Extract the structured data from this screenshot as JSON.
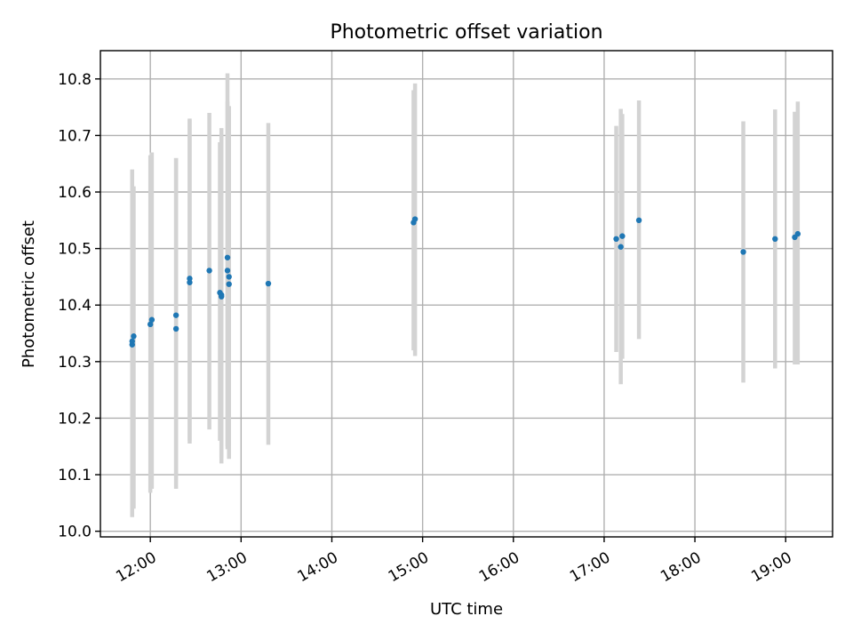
{
  "chart_data": {
    "type": "scatter",
    "title": "Photometric offset variation",
    "xlabel": "UTC time",
    "ylabel": "Photometric offset",
    "xlim": [
      "11:27",
      "19:31"
    ],
    "ylim": [
      9.99,
      10.85
    ],
    "x_ticks": [
      "12:00",
      "13:00",
      "14:00",
      "15:00",
      "16:00",
      "17:00",
      "18:00",
      "19:00"
    ],
    "y_ticks": [
      "10.0",
      "10.1",
      "10.2",
      "10.3",
      "10.4",
      "10.5",
      "10.6",
      "10.7",
      "10.8"
    ],
    "grid": true,
    "marker_color": "#1f77b4",
    "errorbar_color": "#d3d3d3",
    "points": [
      {
        "t": "11:48",
        "y": 10.33,
        "lo": 10.025,
        "hi": 10.63
      },
      {
        "t": "11:48",
        "y": 10.336,
        "lo": 10.03,
        "hi": 10.64
      },
      {
        "t": "11:49",
        "y": 10.345,
        "lo": 10.04,
        "hi": 10.61
      },
      {
        "t": "12:00",
        "y": 10.366,
        "lo": 10.068,
        "hi": 10.665
      },
      {
        "t": "12:01",
        "y": 10.374,
        "lo": 10.075,
        "hi": 10.67
      },
      {
        "t": "12:17",
        "y": 10.358,
        "lo": 10.075,
        "hi": 10.66
      },
      {
        "t": "12:17",
        "y": 10.382,
        "lo": 10.1,
        "hi": 10.66
      },
      {
        "t": "12:26",
        "y": 10.44,
        "lo": 10.155,
        "hi": 10.728
      },
      {
        "t": "12:26",
        "y": 10.447,
        "lo": 10.16,
        "hi": 10.73
      },
      {
        "t": "12:39",
        "y": 10.461,
        "lo": 10.18,
        "hi": 10.74
      },
      {
        "t": "12:46",
        "y": 10.422,
        "lo": 10.16,
        "hi": 10.688
      },
      {
        "t": "12:47",
        "y": 10.415,
        "lo": 10.12,
        "hi": 10.713
      },
      {
        "t": "12:47",
        "y": 10.418,
        "lo": 10.13,
        "hi": 10.7
      },
      {
        "t": "12:51",
        "y": 10.484,
        "lo": 10.15,
        "hi": 10.81
      },
      {
        "t": "12:51",
        "y": 10.461,
        "lo": 10.145,
        "hi": 10.76
      },
      {
        "t": "12:52",
        "y": 10.437,
        "lo": 10.128,
        "hi": 10.752
      },
      {
        "t": "12:52",
        "y": 10.45,
        "lo": 10.15,
        "hi": 10.74
      },
      {
        "t": "13:18",
        "y": 10.438,
        "lo": 10.153,
        "hi": 10.722
      },
      {
        "t": "14:54",
        "y": 10.546,
        "lo": 10.32,
        "hi": 10.78
      },
      {
        "t": "14:55",
        "y": 10.552,
        "lo": 10.31,
        "hi": 10.792
      },
      {
        "t": "17:08",
        "y": 10.517,
        "lo": 10.317,
        "hi": 10.717
      },
      {
        "t": "17:11",
        "y": 10.503,
        "lo": 10.26,
        "hi": 10.747
      },
      {
        "t": "17:12",
        "y": 10.522,
        "lo": 10.305,
        "hi": 10.738
      },
      {
        "t": "17:23",
        "y": 10.55,
        "lo": 10.34,
        "hi": 10.762
      },
      {
        "t": "18:32",
        "y": 10.494,
        "lo": 10.263,
        "hi": 10.725
      },
      {
        "t": "18:53",
        "y": 10.517,
        "lo": 10.288,
        "hi": 10.746
      },
      {
        "t": "19:06",
        "y": 10.52,
        "lo": 10.295,
        "hi": 10.742
      },
      {
        "t": "19:08",
        "y": 10.526,
        "lo": 10.295,
        "hi": 10.76
      }
    ]
  }
}
